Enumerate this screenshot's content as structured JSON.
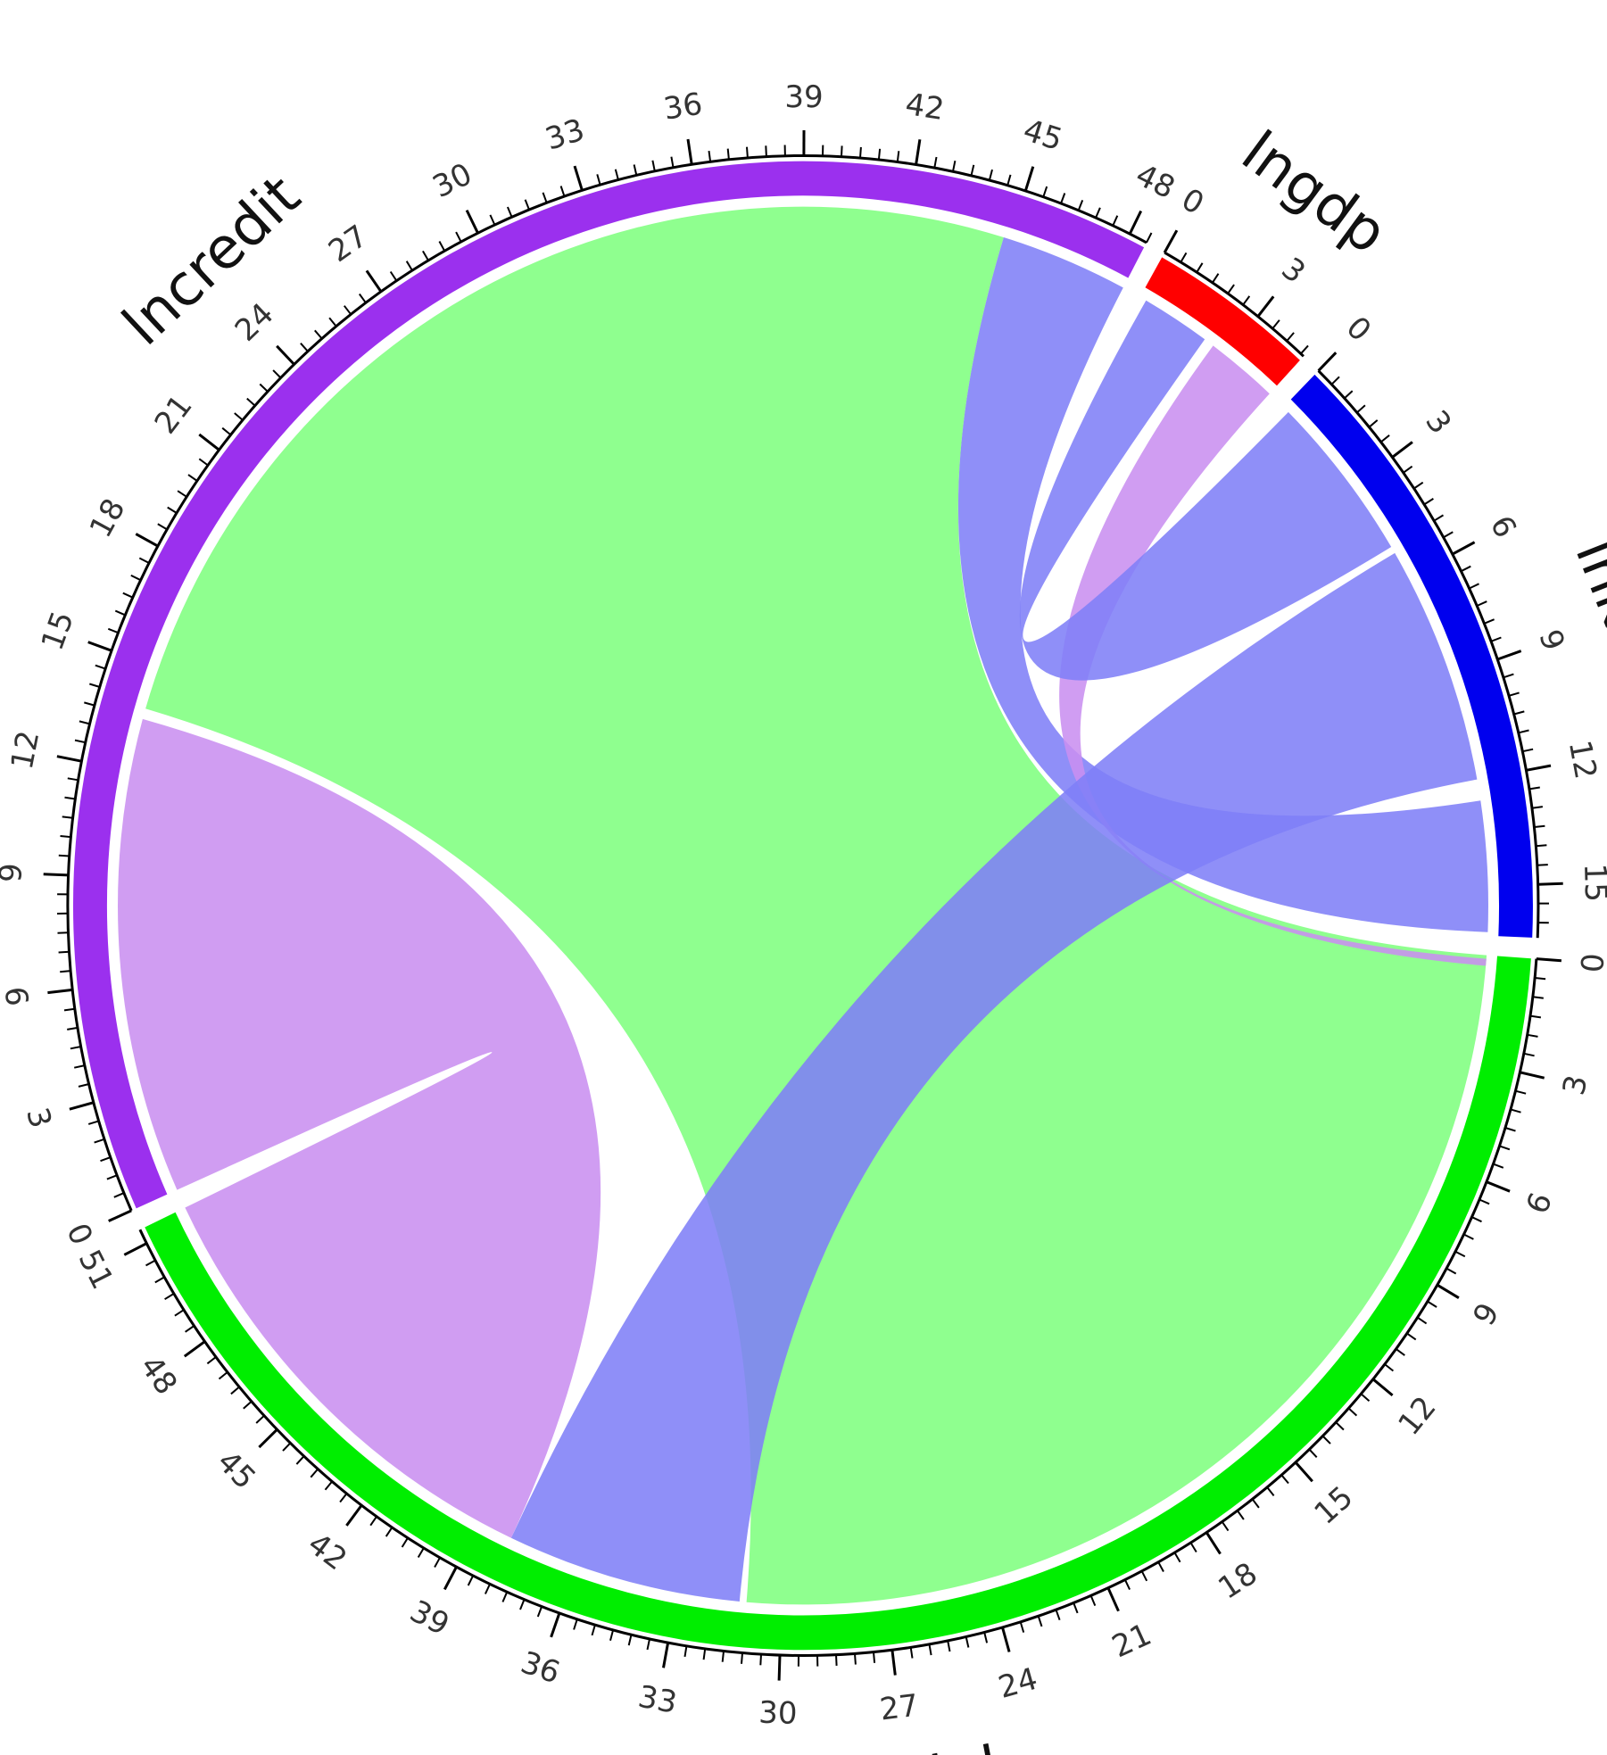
{
  "chart_data": {
    "type": "chord",
    "title": "",
    "sectors": [
      {
        "name": "lncredit",
        "color": "#9b30ee",
        "max": 48.5,
        "tick_step": 3
      },
      {
        "name": "lngdp",
        "color": "#ff0000",
        "max": 4.6,
        "tick_step": 3
      },
      {
        "name": "lnk",
        "color": "#0000ee",
        "max": 16.4,
        "tick_step": 3
      },
      {
        "name": "lnl",
        "color": "#00ee00",
        "max": 51.4,
        "tick_step": 3
      }
    ],
    "tick_labels": {
      "lncredit": [
        "0",
        "3",
        "6",
        "9",
        "12",
        "15",
        "18",
        "21",
        "24",
        "27",
        "30",
        "33",
        "36",
        "39",
        "42",
        "45",
        "48"
      ],
      "lngdp": [
        "0",
        "3"
      ],
      "lnk": [
        "0",
        "3",
        "6",
        "9",
        "12",
        "15"
      ],
      "lnl": [
        "0",
        "3",
        "6",
        "9",
        "12",
        "15",
        "18",
        "21",
        "24",
        "27",
        "30",
        "33",
        "36",
        "39",
        "42",
        "45",
        "48",
        "51"
      ]
    },
    "links": [
      {
        "from": "lncredit",
        "from_range": [
          0,
          13.5
        ],
        "to": "lnl",
        "to_range": [
          38,
          51.4
        ],
        "color": "#c98ff0"
      },
      {
        "from": "lncredit",
        "from_range": [
          13.8,
          44.8
        ],
        "to": "lnl",
        "to_range": [
          0,
          31
        ],
        "color": "#80ff80"
      },
      {
        "from": "lncredit",
        "from_range": [
          44.8,
          48.5
        ],
        "to": "lnk",
        "to_range": [
          12.6,
          16.3
        ],
        "color": "#7f7ff7"
      },
      {
        "from": "lngdp",
        "from_range": [
          2.5,
          4.6
        ],
        "to": "lnl",
        "to_range": [
          0.1,
          0.3
        ],
        "color": "#c98ff0"
      },
      {
        "from": "lngdp",
        "from_range": [
          0.2,
          2.2
        ],
        "to": "lnk",
        "to_range": [
          0.2,
          5.0
        ],
        "color": "#7f7ff7"
      },
      {
        "from": "lnk",
        "from_range": [
          5.2,
          12.0
        ],
        "to": "lnl",
        "to_range": [
          31.2,
          38.0
        ],
        "color": "#7f7ff7"
      }
    ],
    "grid": false,
    "legend": "none"
  }
}
